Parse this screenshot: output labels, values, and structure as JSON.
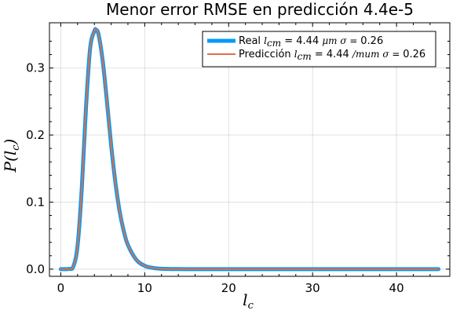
{
  "chart_data": {
    "type": "line",
    "title": "Menor error RMSE en predicción 4.4e-5",
    "xlabel": "l_c",
    "ylabel": "P(l_c)",
    "xlim": [
      -1.35,
      46.35
    ],
    "ylim": [
      -0.0107,
      0.3675
    ],
    "xticks": [
      0,
      10,
      20,
      30,
      40
    ],
    "yticks": [
      0.0,
      0.1,
      0.2,
      0.3
    ],
    "xtick_labels": [
      "0",
      "10",
      "20",
      "30",
      "40"
    ],
    "ytick_labels": [
      "0.0",
      "0.1",
      "0.2",
      "0.3"
    ],
    "grid": true,
    "legend_position": "top-right",
    "x": [
      0,
      1,
      1.5,
      2,
      2.5,
      3,
      3.5,
      4,
      4.2,
      4.5,
      5,
      5.5,
      6,
      6.5,
      7,
      7.5,
      8,
      9,
      10,
      11,
      12,
      14,
      16,
      20,
      25,
      30,
      35,
      40,
      45
    ],
    "series": [
      {
        "name": "Real",
        "legend_label": {
          "prefix": "Real ",
          "math1": "l",
          "sub": "cm",
          "eq1": " =  4.44 ",
          "unit": "μm",
          "math2": " σ = ",
          "val": " 0.26"
        },
        "color": "#009AFA",
        "width": 5,
        "values": [
          0,
          0.0003,
          0.004,
          0.035,
          0.12,
          0.24,
          0.33,
          0.355,
          0.357,
          0.35,
          0.31,
          0.25,
          0.185,
          0.13,
          0.087,
          0.057,
          0.036,
          0.014,
          0.005,
          0.0018,
          0.0006,
          0.0001,
          0,
          0,
          0,
          0,
          0,
          0,
          0
        ]
      },
      {
        "name": "Predicción",
        "legend_label": {
          "prefix": "Predicción ",
          "math1": "l",
          "sub": "cm",
          "eq1": " =  4.44 ",
          "unit": "/mum",
          "math2": " σ = ",
          "val": " 0.26"
        },
        "color": "#E26F46",
        "width": 2,
        "values": [
          0,
          0.0003,
          0.004,
          0.035,
          0.12,
          0.24,
          0.33,
          0.355,
          0.357,
          0.35,
          0.31,
          0.25,
          0.185,
          0.13,
          0.087,
          0.057,
          0.036,
          0.014,
          0.005,
          0.0018,
          0.0006,
          0.0001,
          0,
          0,
          0,
          0,
          0,
          0,
          0
        ]
      }
    ]
  }
}
